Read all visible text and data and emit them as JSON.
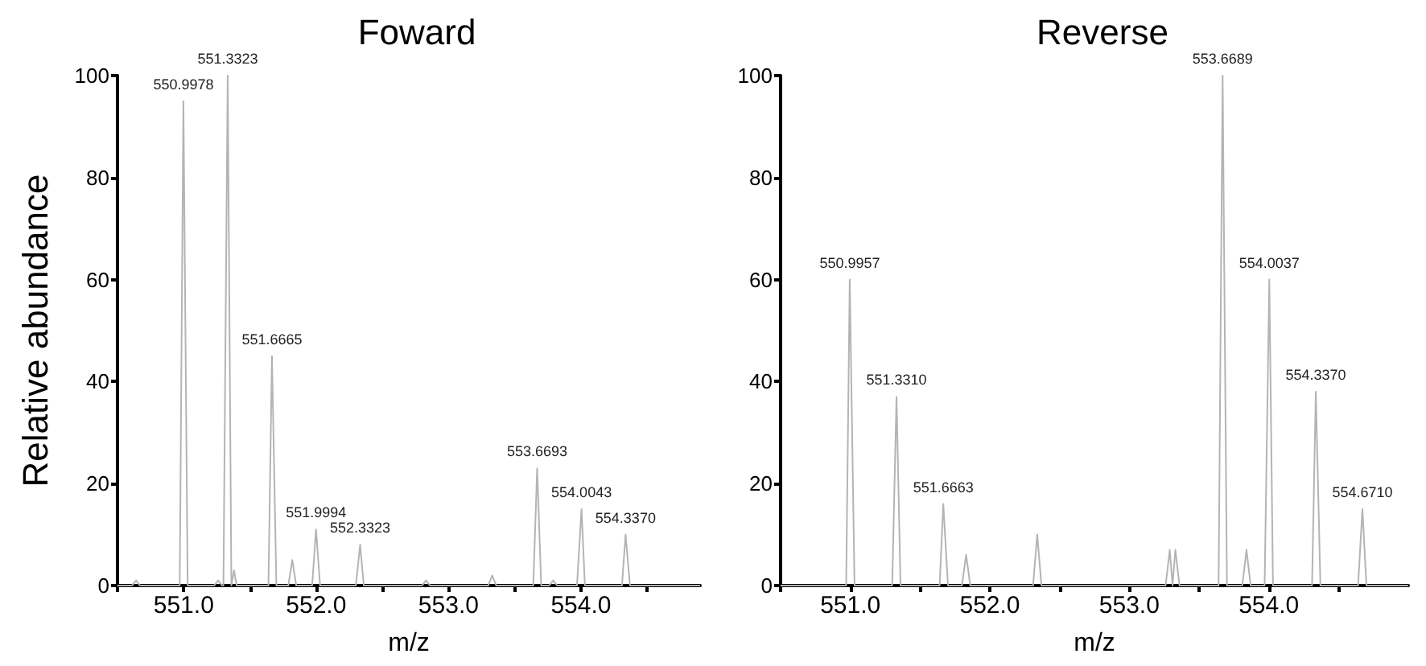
{
  "chart_data": [
    {
      "type": "line",
      "title": "Foward",
      "xlabel": "m/z",
      "ylabel": "Relative abundance",
      "xlim": [
        550.5,
        554.9
      ],
      "ylim": [
        0,
        100
      ],
      "yticks": [
        0,
        20,
        40,
        60,
        80,
        100
      ],
      "xticks": [
        {
          "value": 550.5,
          "label": null
        },
        {
          "value": 551,
          "label": "551.0"
        },
        {
          "value": 551.5,
          "label": null
        },
        {
          "value": 552,
          "label": "552.0"
        },
        {
          "value": 552.5,
          "label": null
        },
        {
          "value": 553,
          "label": "553.0"
        },
        {
          "value": 553.5,
          "label": null
        },
        {
          "value": 554,
          "label": "554.0"
        },
        {
          "value": 554.5,
          "label": null
        }
      ],
      "series": [
        {
          "color": "#b4b4b4",
          "x": [
            550.5,
            550.61,
            550.64,
            550.67,
            550.97,
            550.9978,
            551.03,
            551.23,
            551.26,
            551.29,
            551.3,
            551.3323,
            551.36,
            551.38,
            551.4,
            551.64,
            551.6665,
            551.7,
            551.79,
            551.82,
            551.85,
            551.97,
            551.9994,
            552.03,
            552.3,
            552.3323,
            552.36,
            552.8,
            552.83,
            552.86,
            553.3,
            553.33,
            553.36,
            553.64,
            553.6693,
            553.7,
            553.76,
            553.79,
            553.82,
            553.97,
            554.0043,
            554.03,
            554.31,
            554.337,
            554.37,
            554.9
          ],
          "values": [
            0,
            0,
            1,
            0,
            0,
            95,
            0,
            0,
            1,
            0,
            0,
            100,
            0,
            3,
            0,
            0,
            45,
            0,
            0,
            5,
            0,
            0,
            11,
            0,
            0,
            8,
            0,
            0,
            1,
            0,
            0,
            2,
            0,
            0,
            23,
            0,
            0,
            1,
            0,
            0,
            15,
            0,
            0,
            10,
            0,
            0
          ]
        }
      ],
      "annotations": [
        {
          "text": "550.9978",
          "x": 550.9978,
          "y": 95
        },
        {
          "text": "551.3323",
          "x": 551.3323,
          "y": 100
        },
        {
          "text": "551.6665",
          "x": 551.6665,
          "y": 45
        },
        {
          "text": "551.9994",
          "x": 551.9994,
          "y": 11
        },
        {
          "text": "552.3323",
          "x": 552.3323,
          "y": 8
        },
        {
          "text": "553.6693",
          "x": 553.6693,
          "y": 23
        },
        {
          "text": "554.0043",
          "x": 554.0043,
          "y": 15
        },
        {
          "text": "554.3370",
          "x": 554.337,
          "y": 10
        }
      ]
    },
    {
      "type": "line",
      "title": "Reverse",
      "xlabel": "m/z",
      "xlim": [
        550.5,
        555.0
      ],
      "ylim": [
        0,
        100
      ],
      "yticks": [
        0,
        20,
        40,
        60,
        80,
        100
      ],
      "xticks": [
        {
          "value": 550.5,
          "label": null
        },
        {
          "value": 551,
          "label": "551.0"
        },
        {
          "value": 551.5,
          "label": null
        },
        {
          "value": 552,
          "label": "552.0"
        },
        {
          "value": 552.5,
          "label": null
        },
        {
          "value": 553,
          "label": "553.0"
        },
        {
          "value": 553.5,
          "label": null
        },
        {
          "value": 554,
          "label": "554.0"
        },
        {
          "value": 554.5,
          "label": null
        }
      ],
      "series": [
        {
          "color": "#b4b4b4",
          "x": [
            550.5,
            550.97,
            550.9957,
            551.03,
            551.3,
            551.331,
            551.36,
            551.64,
            551.6663,
            551.7,
            551.8,
            551.83,
            551.86,
            552.31,
            552.34,
            552.37,
            553.26,
            553.29,
            553.31,
            553.33,
            553.36,
            553.64,
            553.6689,
            553.7,
            553.81,
            553.84,
            553.87,
            553.97,
            554.0037,
            554.03,
            554.31,
            554.337,
            554.37,
            554.64,
            554.671,
            554.7,
            555.0
          ],
          "values": [
            0,
            0,
            60,
            0,
            0,
            37,
            0,
            0,
            16,
            0,
            0,
            6,
            0,
            0,
            10,
            0,
            0,
            7,
            0,
            7,
            0,
            0,
            100,
            0,
            0,
            7,
            0,
            0,
            60,
            0,
            0,
            38,
            0,
            0,
            15,
            0,
            0
          ]
        }
      ],
      "annotations": [
        {
          "text": "550.9957",
          "x": 550.9957,
          "y": 60
        },
        {
          "text": "551.3310",
          "x": 551.331,
          "y": 37
        },
        {
          "text": "551.6663",
          "x": 551.6663,
          "y": 16
        },
        {
          "text": "553.6689",
          "x": 553.6689,
          "y": 100
        },
        {
          "text": "554.0037",
          "x": 554.0037,
          "y": 60
        },
        {
          "text": "554.3370",
          "x": 554.337,
          "y": 38
        },
        {
          "text": "554.6710",
          "x": 554.671,
          "y": 15
        }
      ]
    }
  ]
}
